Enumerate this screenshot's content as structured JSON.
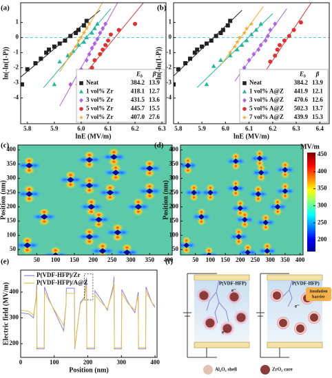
{
  "chart_data": [
    {
      "type": "weibull",
      "panel": "(a)",
      "xlabel": "lnE (MV/m)",
      "ylabel": "ln(-ln(1-P))",
      "xlim": [
        5.775,
        6.315
      ],
      "xticks": [
        5.8,
        5.9,
        {
          "value": 6,
          "label": "6.0"
        },
        6.1,
        6.2,
        6.3
      ],
      "ylim": [
        -5.7,
        2.3
      ],
      "yticks": [
        -4,
        -3,
        -2,
        -1,
        0,
        1
      ],
      "hline": 0,
      "hline_color": "#3fc8e0",
      "legend": "lower right",
      "legend_eb": "E",
      "legend_eb_sub": "b",
      "legend_beta": "β",
      "series": [
        {
          "name": "Neat",
          "color": "#222222",
          "marker": "square",
          "eb": 384.2,
          "beta": 13.9,
          "x": [
            5.78,
            5.8,
            5.83,
            5.85,
            5.87,
            5.88,
            5.9,
            5.92,
            5.94,
            5.96,
            5.98,
            5.99,
            6.01,
            6.02
          ],
          "values": [
            -3.1,
            -2.1,
            -1.7,
            -1.4,
            -1.0,
            -0.8,
            -0.6,
            -0.4,
            -0.2,
            0.1,
            0.3,
            0.5,
            0.8,
            1.1
          ]
        },
        {
          "name": "1 vol% Zr",
          "color": "#1fb89a",
          "marker": "triangle",
          "eb": 418.1,
          "beta": 12.7,
          "x": [
            5.9,
            5.92,
            5.95,
            5.97,
            5.99,
            6.01,
            6.02,
            6.04,
            6.05,
            6.06
          ],
          "values": [
            -3.1,
            -1.6,
            -1.2,
            -0.9,
            -0.5,
            -0.3,
            0,
            0.3,
            0.6,
            0.9
          ]
        },
        {
          "name": "3 vol% Zr",
          "color": "#b060e0",
          "marker": "diamond",
          "eb": 431.5,
          "beta": 13.6,
          "x": [
            5.96,
            6.0,
            6.02,
            6.03,
            6.04,
            6.05,
            6.06,
            6.07,
            6.08,
            6.09
          ],
          "values": [
            -3.1,
            -2.1,
            -1.5,
            -1.1,
            -0.7,
            -0.4,
            -0.1,
            0.3,
            0.6,
            0.9
          ]
        },
        {
          "name": "5 vol% Zr",
          "color": "#e03030",
          "marker": "circle",
          "eb": 445.7,
          "beta": 15.5,
          "x": [
            6.02,
            6.04,
            6.05,
            6.07,
            6.08,
            6.09,
            6.1,
            6.11,
            6.14,
            6.2
          ],
          "values": [
            -3.1,
            -2.0,
            -1.5,
            -1.1,
            -0.8,
            -0.5,
            -0.2,
            0.2,
            0.5,
            0.9
          ]
        },
        {
          "name": "7 vol% Zr",
          "color": "#f5a623",
          "marker": "star",
          "eb": 407,
          "eb_label": "407.0",
          "beta": 27.6,
          "x": [
            5.96,
            5.98,
            5.99,
            6.0,
            6.01,
            6.02,
            6.03
          ],
          "values": [
            -1.1,
            -0.6,
            -0.2,
            0,
            0.3,
            0.6,
            0.9
          ]
        }
      ]
    },
    {
      "type": "weibull",
      "panel": "(b)",
      "xlabel": "lnE (MV/m)",
      "ylabel": "ln(-ln(1-P))",
      "xlim": [
        5.78,
        6.44
      ],
      "xticks": [
        5.8,
        5.9,
        {
          "value": 6,
          "label": "6.0"
        },
        6.1,
        6.2,
        6.3,
        6.4
      ],
      "ylim": [
        -5.7,
        2.3
      ],
      "yticks": [
        -4,
        -3,
        -2,
        -1,
        0,
        1
      ],
      "hline": 0,
      "hline_color": "#3fc8e0",
      "legend": "lower right",
      "legend_eb": "E",
      "legend_eb_sub": "b",
      "legend_beta": "β",
      "series": [
        {
          "name": "Neat",
          "color": "#222222",
          "marker": "square",
          "eb": 384.2,
          "beta": 13.9,
          "x": [
            5.78,
            5.8,
            5.83,
            5.85,
            5.87,
            5.88,
            5.9,
            5.92,
            5.94,
            5.96,
            5.98,
            5.99,
            6.01,
            6.02
          ],
          "values": [
            -3.1,
            -2.1,
            -1.7,
            -1.4,
            -1.0,
            -0.8,
            -0.6,
            -0.4,
            -0.2,
            0.1,
            0.3,
            0.5,
            0.8,
            1.1
          ]
        },
        {
          "name": "1 vol% A@Z",
          "color": "#1fb89a",
          "marker": "triangle",
          "eb": 441.9,
          "beta": 12.1,
          "x": [
            5.92,
            5.95,
            5.98,
            6.02,
            6.05,
            6.07,
            6.09,
            6.11,
            6.13,
            6.15
          ],
          "values": [
            -3.1,
            -1.9,
            -1.5,
            -1.2,
            -0.8,
            -0.5,
            -0.2,
            0.2,
            0.5,
            0.9
          ]
        },
        {
          "name": "3 vol% A@Z",
          "color": "#b060e0",
          "marker": "diamond",
          "eb": 470.6,
          "beta": 12.6,
          "x": [
            6.08,
            6.1,
            6.12,
            6.14,
            6.15,
            6.17,
            6.18,
            6.19,
            6.21
          ],
          "values": [
            -2.0,
            -1.5,
            -1.1,
            -0.8,
            -0.5,
            -0.2,
            0.1,
            0.5,
            0.9
          ]
        },
        {
          "name": "5 vol% A@Z",
          "color": "#e03030",
          "marker": "circle",
          "eb": 502.3,
          "beta": 13.7,
          "x": [
            6.16,
            6.19,
            6.21,
            6.22,
            6.23,
            6.25,
            6.27,
            6.29,
            6.32
          ],
          "values": [
            -3.0,
            -1.6,
            -1.2,
            -0.8,
            -0.5,
            -0.2,
            0.1,
            0.5,
            1.0
          ]
        },
        {
          "name": "7 vol% A@Z",
          "color": "#f5a623",
          "marker": "star",
          "eb": 439.9,
          "beta": 15.3,
          "x": [
            6.02,
            6.04,
            6.05,
            6.06,
            6.08,
            6.09,
            6.11
          ],
          "values": [
            -1.0,
            -0.6,
            -0.3,
            0,
            0.3,
            0.6,
            0.9
          ]
        }
      ]
    },
    {
      "type": "heatmap",
      "panel": "(c)",
      "ylabel": "Position (nm)",
      "xlim": [
        0,
        410
      ],
      "xticks": [
        50,
        100,
        150,
        200,
        250,
        300,
        350,
        400
      ],
      "ylim": [
        31,
        417
      ],
      "yticks": [
        50,
        100,
        150,
        200,
        250,
        300,
        350,
        400
      ],
      "particles": [
        [
          30,
          345
        ],
        [
          30,
          245
        ],
        [
          70,
          165
        ],
        [
          25,
          65
        ],
        [
          100,
          30
        ],
        [
          140,
          295
        ],
        [
          190,
          365
        ],
        [
          190,
          275
        ],
        [
          195,
          200
        ],
        [
          190,
          95
        ],
        [
          215,
          155
        ],
        [
          225,
          45
        ],
        [
          245,
          250
        ],
        [
          255,
          375
        ],
        [
          260,
          320
        ],
        [
          265,
          110
        ],
        [
          290,
          40
        ],
        [
          320,
          200
        ],
        [
          350,
          335
        ],
        [
          350,
          255
        ]
      ]
    },
    {
      "type": "heatmap",
      "panel": "(d)",
      "ylabel": "Position (nm)",
      "xlim": [
        0,
        410
      ],
      "xticks": [
        50,
        100,
        150,
        200,
        250,
        300,
        350,
        400
      ],
      "ylim": [
        31,
        417
      ],
      "yticks": [
        50,
        100,
        150,
        200,
        250,
        300,
        350,
        400
      ],
      "particles": [
        [
          25,
          345
        ],
        [
          45,
          250
        ],
        [
          70,
          165
        ],
        [
          20,
          65
        ],
        [
          95,
          30
        ],
        [
          100,
          250
        ],
        [
          185,
          360
        ],
        [
          185,
          265
        ],
        [
          200,
          195
        ],
        [
          195,
          95
        ],
        [
          215,
          155
        ],
        [
          225,
          40
        ],
        [
          260,
          245
        ],
        [
          265,
          370
        ],
        [
          270,
          320
        ],
        [
          285,
          145
        ],
        [
          290,
          45
        ],
        [
          325,
          200
        ],
        [
          350,
          330
        ],
        [
          350,
          255
        ]
      ],
      "colorbar": {
        "label": "MV/m",
        "lim": [
          166,
          456
        ],
        "ticks": [
          200,
          250,
          300,
          350,
          400,
          450
        ]
      }
    },
    {
      "type": "line",
      "panel": "(e)",
      "xlabel": "Position (nm)",
      "ylabel": "Electric field (MV/m)",
      "xlim": [
        0,
        406
      ],
      "xticks": [
        0,
        100,
        200,
        300,
        400
      ],
      "ylim": [
        147,
        485
      ],
      "yticks": [
        200,
        300,
        400
      ],
      "legend": "upper left",
      "x": [
        0,
        25,
        38,
        46,
        48,
        48.5,
        70,
        71,
        85,
        110,
        128,
        135,
        136,
        160,
        161,
        178,
        190,
        196,
        197,
        220,
        221,
        240,
        258,
        276,
        278,
        279,
        300,
        301,
        320,
        340,
        350,
        351,
        372,
        373,
        390,
        400
      ],
      "series": [
        {
          "name": "P(VDF-HFP)/Zr",
          "color": "#8a7fe0",
          "values": [
            320,
            315,
            300,
            380,
            430,
            180,
            180,
            420,
            370,
            300,
            250,
            350,
            415,
            415,
            180,
            360,
            380,
            455,
            180,
            180,
            405,
            370,
            330,
            425,
            460,
            180,
            180,
            410,
            360,
            320,
            400,
            180,
            180,
            420,
            360,
            340
          ]
        },
        {
          "name": "P(VDF-HFP)/A@Z",
          "color": "#e8c040",
          "values": [
            330,
            325,
            310,
            370,
            410,
            185,
            185,
            400,
            365,
            310,
            270,
            350,
            395,
            395,
            185,
            355,
            375,
            430,
            185,
            185,
            390,
            360,
            335,
            410,
            440,
            185,
            185,
            395,
            355,
            330,
            385,
            185,
            185,
            405,
            360,
            345
          ]
        }
      ]
    }
  ],
  "diagram": {
    "panel": "(f)",
    "matrix_label": "P(VDF-HFP)",
    "electron_label": "e⁻",
    "barrier_label": [
      "Insulation",
      "barrier"
    ],
    "shell_legend": "Al₂O₃ shell",
    "core_legend": "ZrO₂ core"
  }
}
